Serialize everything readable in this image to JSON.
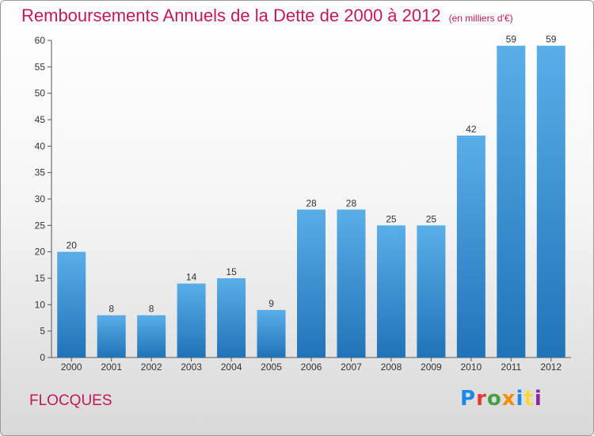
{
  "header": {
    "title": "Remboursements Annuels de la Dette de 2000 à 2012",
    "subtitle": "(en milliers d'€)"
  },
  "footer": {
    "commune": "FLOCQUES",
    "logo_text": "Proxiti"
  },
  "colors": {
    "title": "#c2185b",
    "bar_top": "#5aaee8",
    "bar_bottom": "#2173b8"
  },
  "chart_data": {
    "type": "bar",
    "title": "Remboursements Annuels de la Dette de 2000 à 2012",
    "subtitle": "(en milliers d'€)",
    "xlabel": "",
    "ylabel": "",
    "categories": [
      "2000",
      "2001",
      "2002",
      "2003",
      "2004",
      "2005",
      "2006",
      "2007",
      "2008",
      "2009",
      "2010",
      "2011",
      "2012"
    ],
    "values": [
      20,
      8,
      8,
      14,
      15,
      9,
      28,
      28,
      25,
      25,
      42,
      59,
      59
    ],
    "ylim": [
      0,
      60
    ],
    "yticks": [
      0,
      5,
      10,
      15,
      20,
      25,
      30,
      35,
      40,
      45,
      50,
      55,
      60
    ],
    "grid": false,
    "legend": "none"
  }
}
